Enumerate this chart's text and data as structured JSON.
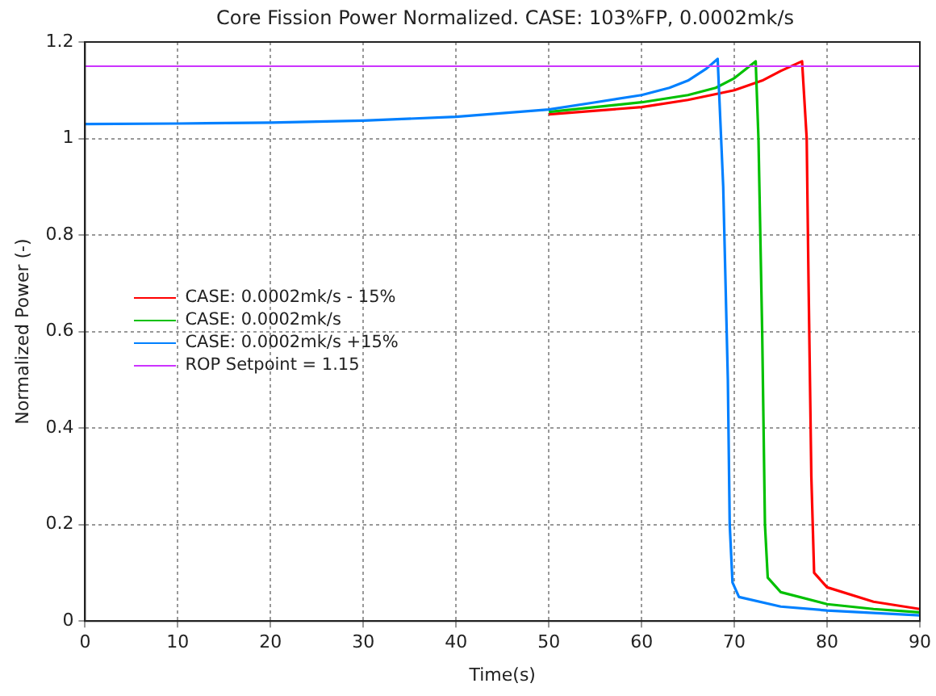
{
  "chart_data": {
    "type": "line",
    "title": "Core Fission Power Normalized. CASE: 103%FP, 0.0002mk/s",
    "xlabel": "Time(s)",
    "ylabel": "Normalized Power (-)",
    "xlim": [
      0,
      90
    ],
    "xticks": [
      0,
      10,
      20,
      30,
      40,
      50,
      60,
      70,
      80,
      90
    ],
    "ylim": [
      0,
      1.2
    ],
    "yticks": [
      0,
      0.2,
      0.4,
      0.6,
      0.8,
      1,
      1.2
    ],
    "grid": true,
    "legend": "center left",
    "marker": "none",
    "line_style": "solid",
    "series": [
      {
        "name": "CASE: 0.0002mk/s - 15%",
        "color": "#ff0000",
        "x": [
          50,
          60,
          65,
          70,
          73,
          75,
          77.3,
          77.8,
          78,
          78.3,
          78.6,
          80,
          85,
          90
        ],
        "values": [
          1.05,
          1.065,
          1.08,
          1.1,
          1.12,
          1.14,
          1.16,
          1.0,
          0.7,
          0.3,
          0.1,
          0.07,
          0.04,
          0.025
        ]
      },
      {
        "name": "CASE: 0.0002mk/s",
        "color": "#00c000",
        "x": [
          50,
          60,
          65,
          68,
          70,
          72.3,
          72.6,
          73,
          73.3,
          73.6,
          75,
          80,
          85,
          90
        ],
        "values": [
          1.055,
          1.075,
          1.09,
          1.105,
          1.125,
          1.16,
          1.0,
          0.6,
          0.2,
          0.09,
          0.06,
          0.035,
          0.025,
          0.018
        ]
      },
      {
        "name": "CASE: 0.0002mk/s +15%",
        "color": "#0080ff",
        "x": [
          0,
          10,
          20,
          30,
          40,
          50,
          55,
          60,
          63,
          65,
          67,
          68.2,
          68.8,
          69.3,
          69.5,
          69.8,
          70.5,
          75,
          80,
          90
        ],
        "values": [
          1.03,
          1.031,
          1.033,
          1.037,
          1.045,
          1.06,
          1.075,
          1.09,
          1.105,
          1.12,
          1.145,
          1.165,
          0.9,
          0.5,
          0.2,
          0.08,
          0.05,
          0.03,
          0.022,
          0.012
        ]
      }
    ],
    "ref_lines": [
      {
        "axis": "y",
        "value": 1.15,
        "label": "ROP Setpoint = 1.15",
        "color": "#cc33ff",
        "line_style": "solid"
      }
    ]
  }
}
